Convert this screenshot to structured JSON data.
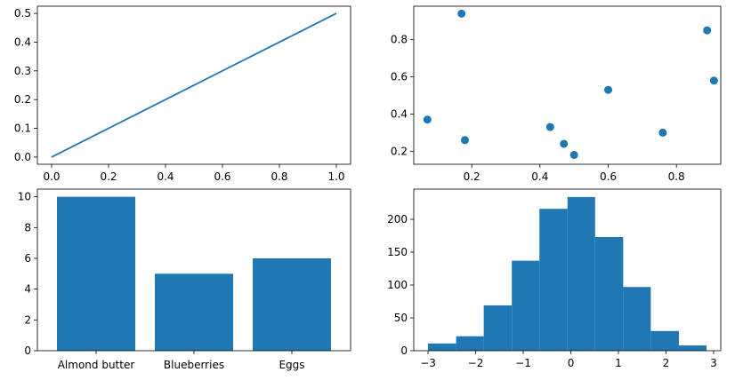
{
  "colors": {
    "series": "#1f77b4",
    "axis": "#000000"
  },
  "chart_data": [
    {
      "type": "line",
      "x": [
        0,
        1
      ],
      "y": [
        0,
        0.5
      ],
      "xlim": [
        -0.05,
        1.05
      ],
      "ylim": [
        -0.025,
        0.525
      ],
      "xticks": [
        0,
        0.2,
        0.4,
        0.6,
        0.8,
        1
      ],
      "xtick_labels": [
        "0.0",
        "0.2",
        "0.4",
        "0.6",
        "0.8",
        "1.0"
      ],
      "yticks": [
        0,
        0.1,
        0.2,
        0.3,
        0.4,
        0.5
      ],
      "ytick_labels": [
        "0.0",
        "0.1",
        "0.2",
        "0.3",
        "0.4",
        "0.5"
      ],
      "grid": false
    },
    {
      "type": "scatter",
      "points": [
        {
          "x": 0.07,
          "y": 0.37
        },
        {
          "x": 0.17,
          "y": 0.94
        },
        {
          "x": 0.18,
          "y": 0.26
        },
        {
          "x": 0.43,
          "y": 0.33
        },
        {
          "x": 0.47,
          "y": 0.24
        },
        {
          "x": 0.5,
          "y": 0.18
        },
        {
          "x": 0.6,
          "y": 0.53
        },
        {
          "x": 0.76,
          "y": 0.3
        },
        {
          "x": 0.89,
          "y": 0.85
        },
        {
          "x": 0.91,
          "y": 0.58
        }
      ],
      "xlim": [
        0.03,
        0.93
      ],
      "ylim": [
        0.13,
        0.98
      ],
      "xticks": [
        0.2,
        0.4,
        0.6,
        0.8
      ],
      "xtick_labels": [
        "0.2",
        "0.4",
        "0.6",
        "0.8"
      ],
      "yticks": [
        0.2,
        0.4,
        0.6,
        0.8
      ],
      "ytick_labels": [
        "0.2",
        "0.4",
        "0.6",
        "0.8"
      ],
      "grid": false
    },
    {
      "type": "bar",
      "categories": [
        "Almond butter",
        "Blueberries",
        "Eggs"
      ],
      "values": [
        10,
        5,
        6
      ],
      "ylim": [
        0,
        10.5
      ],
      "yticks": [
        0,
        2,
        4,
        6,
        8,
        10
      ],
      "ytick_labels": [
        "0",
        "2",
        "4",
        "6",
        "8",
        "10"
      ],
      "grid": false
    },
    {
      "type": "bar",
      "subtype": "histogram",
      "bin_edges": [
        -3.0,
        -2.41,
        -1.83,
        -1.24,
        -0.66,
        -0.07,
        0.51,
        1.1,
        1.68,
        2.27,
        2.85
      ],
      "counts": [
        11,
        22,
        69,
        137,
        216,
        234,
        173,
        97,
        30,
        8
      ],
      "xlim": [
        -3.3,
        3.15
      ],
      "ylim": [
        0,
        246
      ],
      "xticks": [
        -3,
        -2,
        -1,
        0,
        1,
        2,
        3
      ],
      "xtick_labels": [
        "−3",
        "−2",
        "−1",
        "0",
        "1",
        "2",
        "3"
      ],
      "yticks": [
        0,
        50,
        100,
        150,
        200
      ],
      "ytick_labels": [
        "0",
        "50",
        "100",
        "150",
        "200"
      ],
      "grid": false
    }
  ]
}
